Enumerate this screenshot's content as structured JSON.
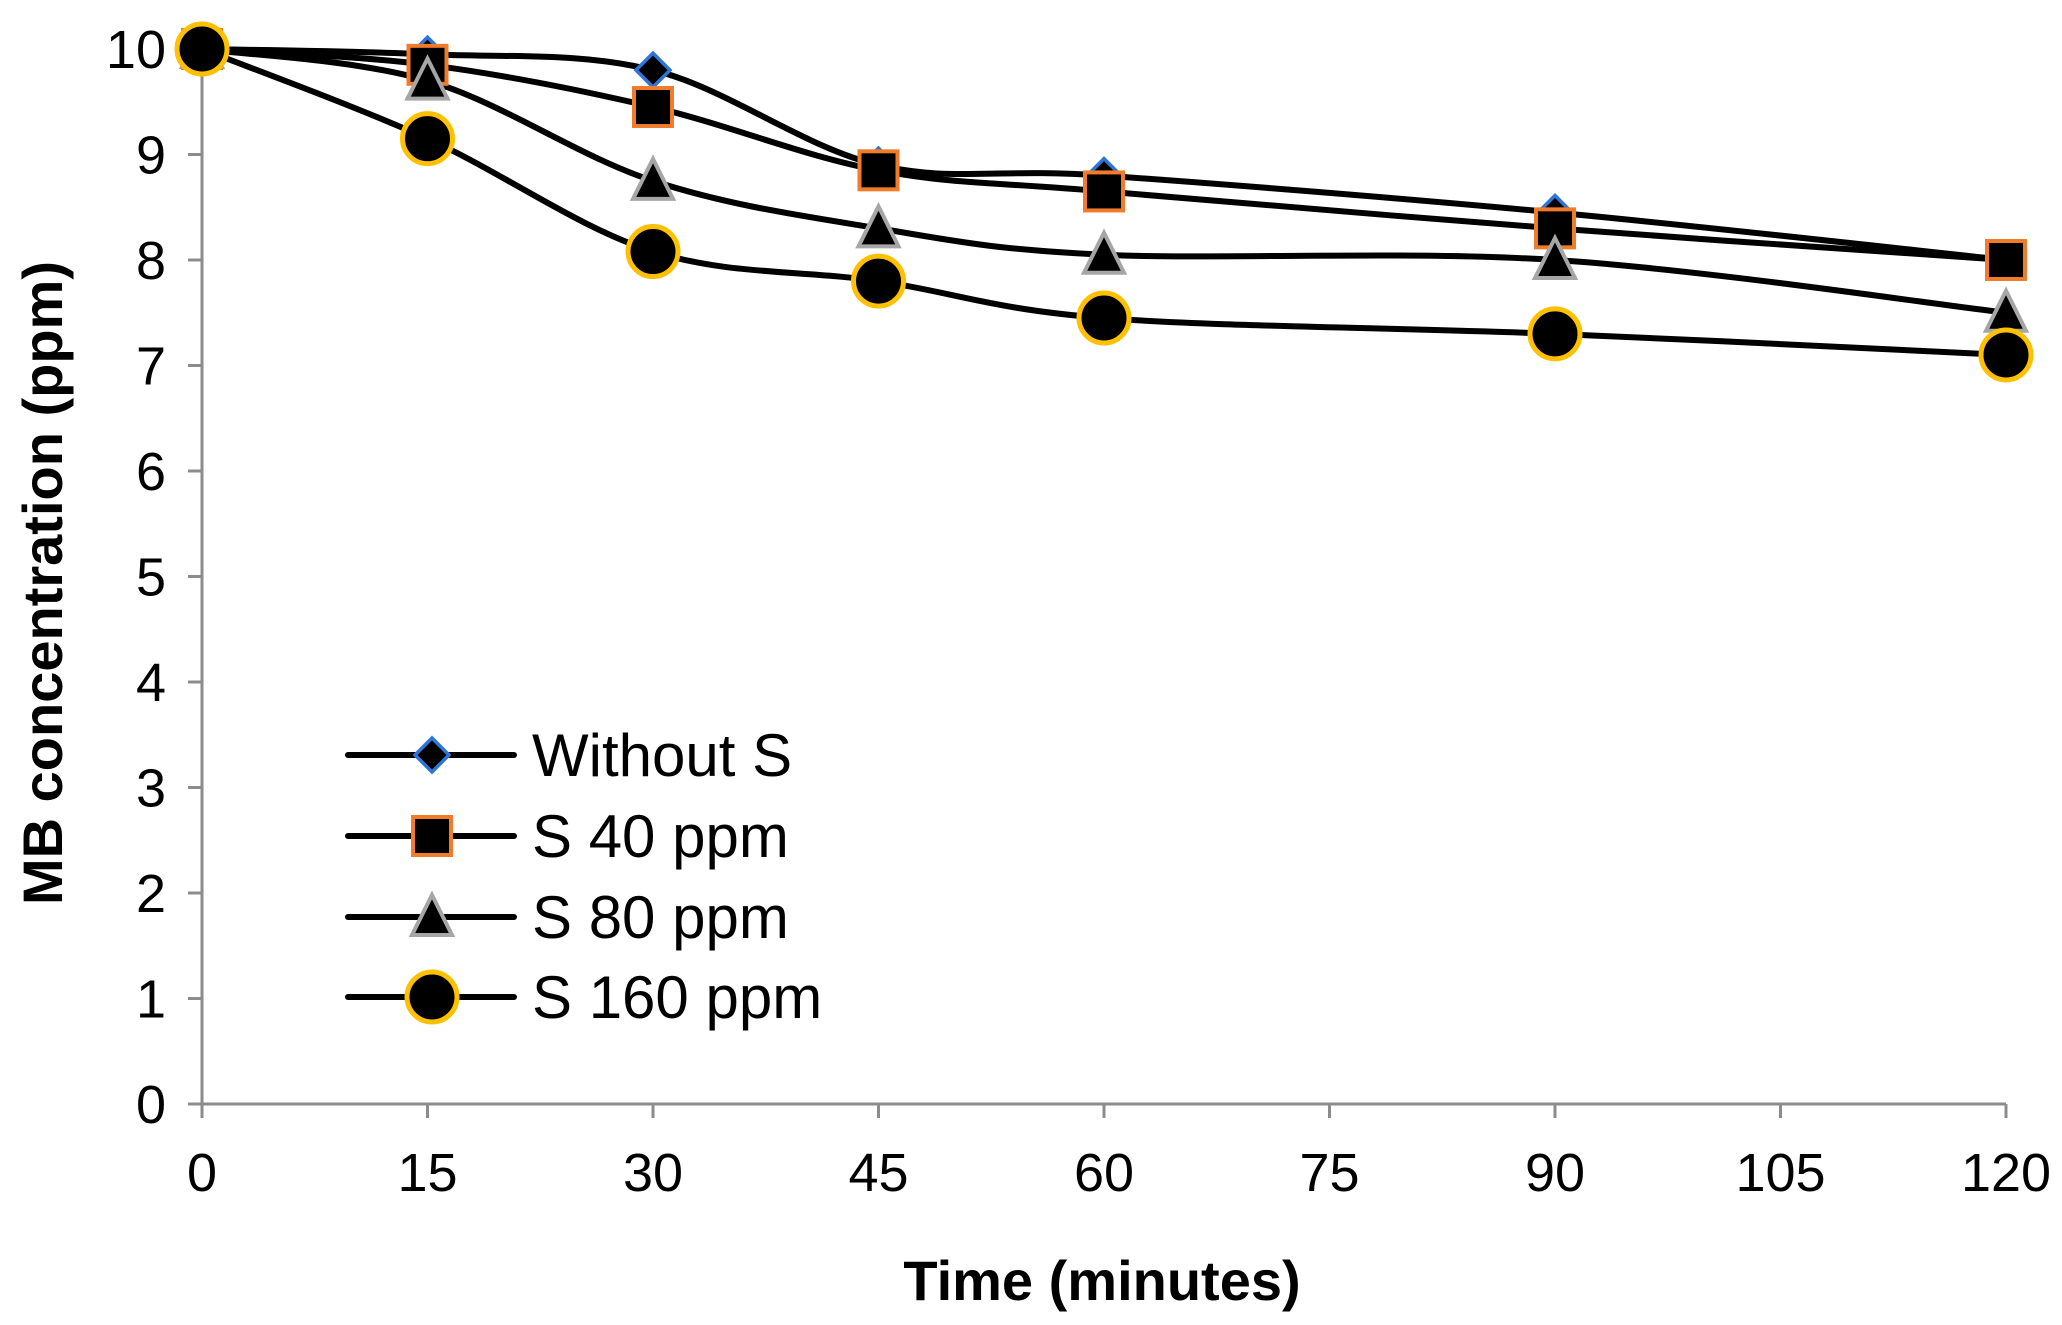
{
  "chart_data": {
    "type": "line",
    "title": "",
    "xlabel": "Time (minutes)",
    "ylabel": "MB concentration (ppm)",
    "xlim": [
      0,
      120
    ],
    "ylim": [
      0,
      10
    ],
    "xticks": [
      0,
      15,
      30,
      45,
      60,
      75,
      90,
      105,
      120
    ],
    "yticks": [
      0,
      1,
      2,
      3,
      4,
      5,
      6,
      7,
      8,
      9,
      10
    ],
    "grid": false,
    "legend_position": "lower-left",
    "x": [
      0,
      15,
      30,
      45,
      60,
      90,
      120
    ],
    "series": [
      {
        "name": "Without S",
        "marker": "diamond",
        "values": [
          10,
          9.95,
          9.8,
          8.9,
          8.8,
          8.45,
          8.0
        ],
        "marker_fill": "#000000",
        "marker_edge": "#2E75D9",
        "line_color": "#000000"
      },
      {
        "name": "S 40 ppm",
        "marker": "square",
        "values": [
          10,
          9.85,
          9.45,
          8.85,
          8.65,
          8.3,
          8.0
        ],
        "marker_fill": "#000000",
        "marker_edge": "#F07B2A",
        "line_color": "#000000"
      },
      {
        "name": "S 80 ppm",
        "marker": "triangle",
        "values": [
          10,
          9.7,
          8.75,
          8.3,
          8.05,
          8.0,
          7.5
        ],
        "marker_fill": "#000000",
        "marker_edge": "#A6A6A6",
        "line_color": "#000000"
      },
      {
        "name": "S 160 ppm",
        "marker": "circle",
        "values": [
          10,
          9.15,
          8.08,
          7.8,
          7.45,
          7.3,
          7.1
        ],
        "marker_fill": "#000000",
        "marker_edge": "#FFC000",
        "line_color": "#000000"
      }
    ]
  }
}
